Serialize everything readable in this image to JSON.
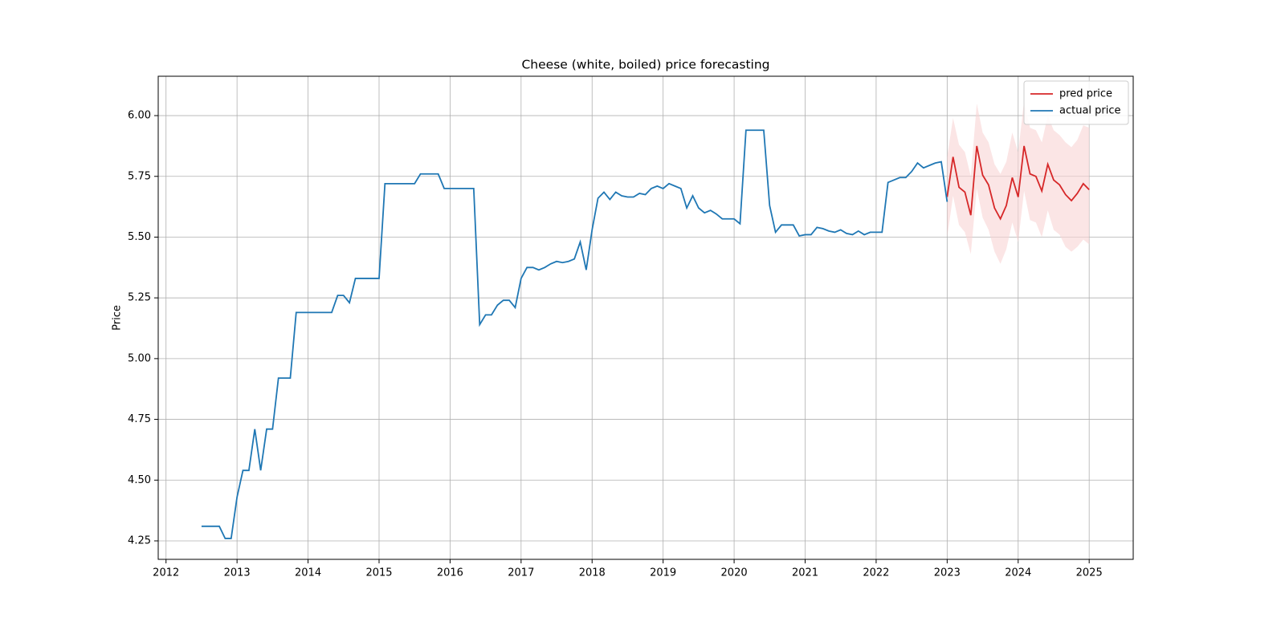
{
  "chart_data": {
    "type": "line",
    "title": "Cheese (white, boiled) price forecasting",
    "y_label": "Price",
    "xlim": [
      2011.89,
      2025.62
    ],
    "xticks": [
      2012,
      2013,
      2014,
      2015,
      2016,
      2017,
      2018,
      2019,
      2020,
      2021,
      2022,
      2023,
      2024,
      2025
    ],
    "ylim": [
      4.174,
      6.162
    ],
    "yticks": [
      {
        "value": 4.25,
        "label": "4.25"
      },
      {
        "value": 4.5,
        "label": "4.50"
      },
      {
        "value": 4.75,
        "label": "4.75"
      },
      {
        "value": 5,
        "label": "5.00"
      },
      {
        "value": 5.25,
        "label": "5.25"
      },
      {
        "value": 5.5,
        "label": "5.50"
      },
      {
        "value": 5.75,
        "label": "5.75"
      },
      {
        "value": 6,
        "label": "6.00"
      }
    ],
    "grid": true,
    "legend": "upper right",
    "series": [
      {
        "name": "pred price",
        "color": "#d62728",
        "band_color": "#f9d3d3",
        "x": [
          2023.0,
          2023.083,
          2023.167,
          2023.25,
          2023.333,
          2023.417,
          2023.5,
          2023.583,
          2023.667,
          2023.75,
          2023.833,
          2023.917,
          2024.0,
          2024.083,
          2024.167,
          2024.25,
          2024.333,
          2024.417,
          2024.5,
          2024.583,
          2024.667,
          2024.75,
          2024.833,
          2024.917,
          2025.0
        ],
        "values": [
          5.665,
          5.83,
          5.705,
          5.685,
          5.59,
          5.875,
          5.755,
          5.715,
          5.62,
          5.575,
          5.63,
          5.745,
          5.665,
          5.875,
          5.76,
          5.75,
          5.69,
          5.8,
          5.735,
          5.715,
          5.675,
          5.65,
          5.68,
          5.72,
          5.695
        ],
        "lower": [
          5.5,
          5.67,
          5.55,
          5.52,
          5.43,
          5.7,
          5.58,
          5.53,
          5.44,
          5.39,
          5.45,
          5.56,
          5.48,
          5.69,
          5.57,
          5.56,
          5.5,
          5.61,
          5.53,
          5.51,
          5.46,
          5.44,
          5.46,
          5.49,
          5.47
        ],
        "upper": [
          5.83,
          5.99,
          5.88,
          5.85,
          5.75,
          6.05,
          5.93,
          5.89,
          5.8,
          5.76,
          5.81,
          5.93,
          5.85,
          6.06,
          5.95,
          5.94,
          5.89,
          6.0,
          5.94,
          5.92,
          5.89,
          5.87,
          5.9,
          5.96,
          5.95
        ]
      },
      {
        "name": "actual price",
        "color": "#1f77b4",
        "x": [
          2012.5,
          2012.583,
          2012.667,
          2012.75,
          2012.833,
          2012.917,
          2013.0,
          2013.083,
          2013.167,
          2013.25,
          2013.333,
          2013.417,
          2013.5,
          2013.583,
          2013.667,
          2013.75,
          2013.833,
          2013.917,
          2014.0,
          2014.083,
          2014.167,
          2014.25,
          2014.333,
          2014.417,
          2014.5,
          2014.583,
          2014.667,
          2014.75,
          2014.833,
          2014.917,
          2015.0,
          2015.083,
          2015.167,
          2015.25,
          2015.333,
          2015.417,
          2015.5,
          2015.583,
          2015.667,
          2015.75,
          2015.833,
          2015.917,
          2016.0,
          2016.083,
          2016.167,
          2016.25,
          2016.333,
          2016.417,
          2016.5,
          2016.583,
          2016.667,
          2016.75,
          2016.833,
          2016.917,
          2017.0,
          2017.083,
          2017.167,
          2017.25,
          2017.333,
          2017.417,
          2017.5,
          2017.583,
          2017.667,
          2017.75,
          2017.833,
          2017.917,
          2018.0,
          2018.083,
          2018.167,
          2018.25,
          2018.333,
          2018.417,
          2018.5,
          2018.583,
          2018.667,
          2018.75,
          2018.833,
          2018.917,
          2019.0,
          2019.083,
          2019.167,
          2019.25,
          2019.333,
          2019.417,
          2019.5,
          2019.583,
          2019.667,
          2019.75,
          2019.833,
          2019.917,
          2020.0,
          2020.083,
          2020.167,
          2020.25,
          2020.333,
          2020.417,
          2020.5,
          2020.583,
          2020.667,
          2020.75,
          2020.833,
          2020.917,
          2021.0,
          2021.083,
          2021.167,
          2021.25,
          2021.333,
          2021.417,
          2021.5,
          2021.583,
          2021.667,
          2021.75,
          2021.833,
          2021.917,
          2022.0,
          2022.083,
          2022.167,
          2022.25,
          2022.333,
          2022.417,
          2022.5,
          2022.583,
          2022.667,
          2022.75,
          2022.833,
          2022.917,
          2023.0
        ],
        "values": [
          4.31,
          4.31,
          4.31,
          4.31,
          4.26,
          4.26,
          4.43,
          4.54,
          4.54,
          4.71,
          4.54,
          4.71,
          4.71,
          4.92,
          4.92,
          4.92,
          5.19,
          5.19,
          5.19,
          5.19,
          5.19,
          5.19,
          5.19,
          5.26,
          5.26,
          5.23,
          5.33,
          5.33,
          5.33,
          5.33,
          5.33,
          5.72,
          5.72,
          5.72,
          5.72,
          5.72,
          5.72,
          5.76,
          5.76,
          5.76,
          5.76,
          5.7,
          5.7,
          5.7,
          5.7,
          5.7,
          5.7,
          5.14,
          5.18,
          5.18,
          5.22,
          5.24,
          5.24,
          5.21,
          5.33,
          5.375,
          5.375,
          5.365,
          5.375,
          5.39,
          5.4,
          5.395,
          5.4,
          5.41,
          5.48,
          5.365,
          5.53,
          5.66,
          5.685,
          5.655,
          5.685,
          5.67,
          5.665,
          5.665,
          5.68,
          5.675,
          5.7,
          5.71,
          5.7,
          5.72,
          5.71,
          5.7,
          5.62,
          5.67,
          5.62,
          5.6,
          5.61,
          5.595,
          5.575,
          5.575,
          5.575,
          5.555,
          5.94,
          5.94,
          5.94,
          5.94,
          5.63,
          5.52,
          5.55,
          5.55,
          5.55,
          5.505,
          5.51,
          5.51,
          5.54,
          5.535,
          5.525,
          5.52,
          5.53,
          5.515,
          5.51,
          5.525,
          5.51,
          5.52,
          5.52,
          5.52,
          5.725,
          5.735,
          5.745,
          5.745,
          5.77,
          5.805,
          5.785,
          5.795,
          5.805,
          5.81,
          5.645
        ]
      }
    ]
  }
}
